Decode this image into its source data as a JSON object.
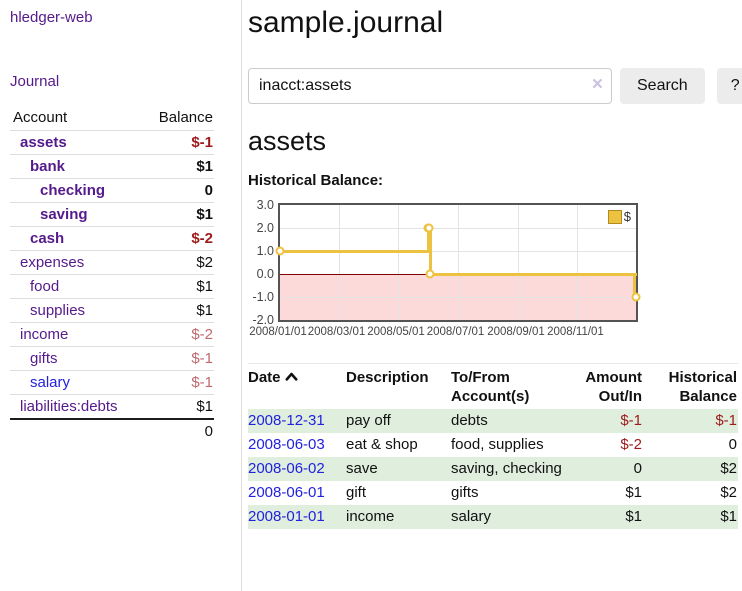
{
  "app": {
    "title": "hledger-web",
    "journal_link": "Journal"
  },
  "sidebar": {
    "col_account": "Account",
    "col_balance": "Balance",
    "accounts": [
      {
        "name": "assets",
        "balance": "$-1",
        "depth": 1,
        "bold": true,
        "neg": "strong"
      },
      {
        "name": "bank",
        "balance": "$1",
        "depth": 2,
        "bold": true
      },
      {
        "name": "checking",
        "balance": "0",
        "depth": 3,
        "bold": true
      },
      {
        "name": "saving",
        "balance": "$1",
        "depth": 3,
        "bold": true
      },
      {
        "name": "cash",
        "balance": "$-2",
        "depth": 2,
        "bold": true,
        "neg": "strong"
      },
      {
        "name": "expenses",
        "balance": "$2",
        "depth": 1
      },
      {
        "name": "food",
        "balance": "$1",
        "depth": 2
      },
      {
        "name": "supplies",
        "balance": "$1",
        "depth": 2
      },
      {
        "name": "income",
        "balance": "$-2",
        "depth": 1,
        "neg": "soft"
      },
      {
        "name": "gifts",
        "balance": "$-1",
        "depth": 2,
        "neg": "soft"
      },
      {
        "name": "salary",
        "balance": "$-1",
        "depth": 2,
        "neg": "soft",
        "link": "new"
      },
      {
        "name": "liabilities:debts",
        "balance": "$1",
        "depth": 1
      }
    ],
    "total": "0"
  },
  "header": {
    "title": "sample.journal"
  },
  "search": {
    "value": "inacct:assets",
    "clear": "×",
    "button": "Search",
    "help": "?"
  },
  "account_page": {
    "heading": "assets",
    "chart_label": "Historical Balance:"
  },
  "chart_data": {
    "type": "line",
    "title": "Historical Balance",
    "style": "steps",
    "grid": true,
    "legend_position": "top-right",
    "x_range": [
      "2008-01-01",
      "2008-12-31"
    ],
    "ylim": [
      -2,
      3
    ],
    "yticks": [
      "3.0",
      "2.0",
      "1.0",
      "0.0",
      "-1.0",
      "-2.0"
    ],
    "xticks": [
      "2008/01/01",
      "2008/03/01",
      "2008/05/01",
      "2008/07/01",
      "2008/09/01",
      "2008/11/01"
    ],
    "series": [
      {
        "name": "$",
        "color": "#edc240",
        "points": [
          [
            "2008-01-01",
            1
          ],
          [
            "2008-06-01",
            2
          ],
          [
            "2008-06-02",
            2
          ],
          [
            "2008-06-03",
            0
          ],
          [
            "2008-12-31",
            -1
          ]
        ]
      }
    ],
    "negative_region_color": "#fcdada",
    "zero_line_color": "#7f0000"
  },
  "register": {
    "headers": {
      "date": "Date",
      "description": "Description",
      "tofrom": "To/From Account(s)",
      "amount": "Amount Out/In",
      "balance": "Historical Balance"
    },
    "rows": [
      {
        "date": "2008-12-31",
        "description": "pay off",
        "accounts": "debts",
        "amount": "$-1",
        "amount_neg": true,
        "balance": "$-1",
        "balance_neg": true
      },
      {
        "date": "2008-06-03",
        "description": "eat & shop",
        "accounts": "food, supplies",
        "amount": "$-2",
        "amount_neg": true,
        "balance": "0"
      },
      {
        "date": "2008-06-02",
        "description": "save",
        "accounts": "saving, checking",
        "amount": "0",
        "balance": "$2"
      },
      {
        "date": "2008-06-01",
        "description": "gift",
        "accounts": "gifts",
        "amount": "$1",
        "balance": "$2"
      },
      {
        "date": "2008-01-01",
        "description": "income",
        "accounts": "salary",
        "amount": "$1",
        "balance": "$1"
      }
    ]
  }
}
